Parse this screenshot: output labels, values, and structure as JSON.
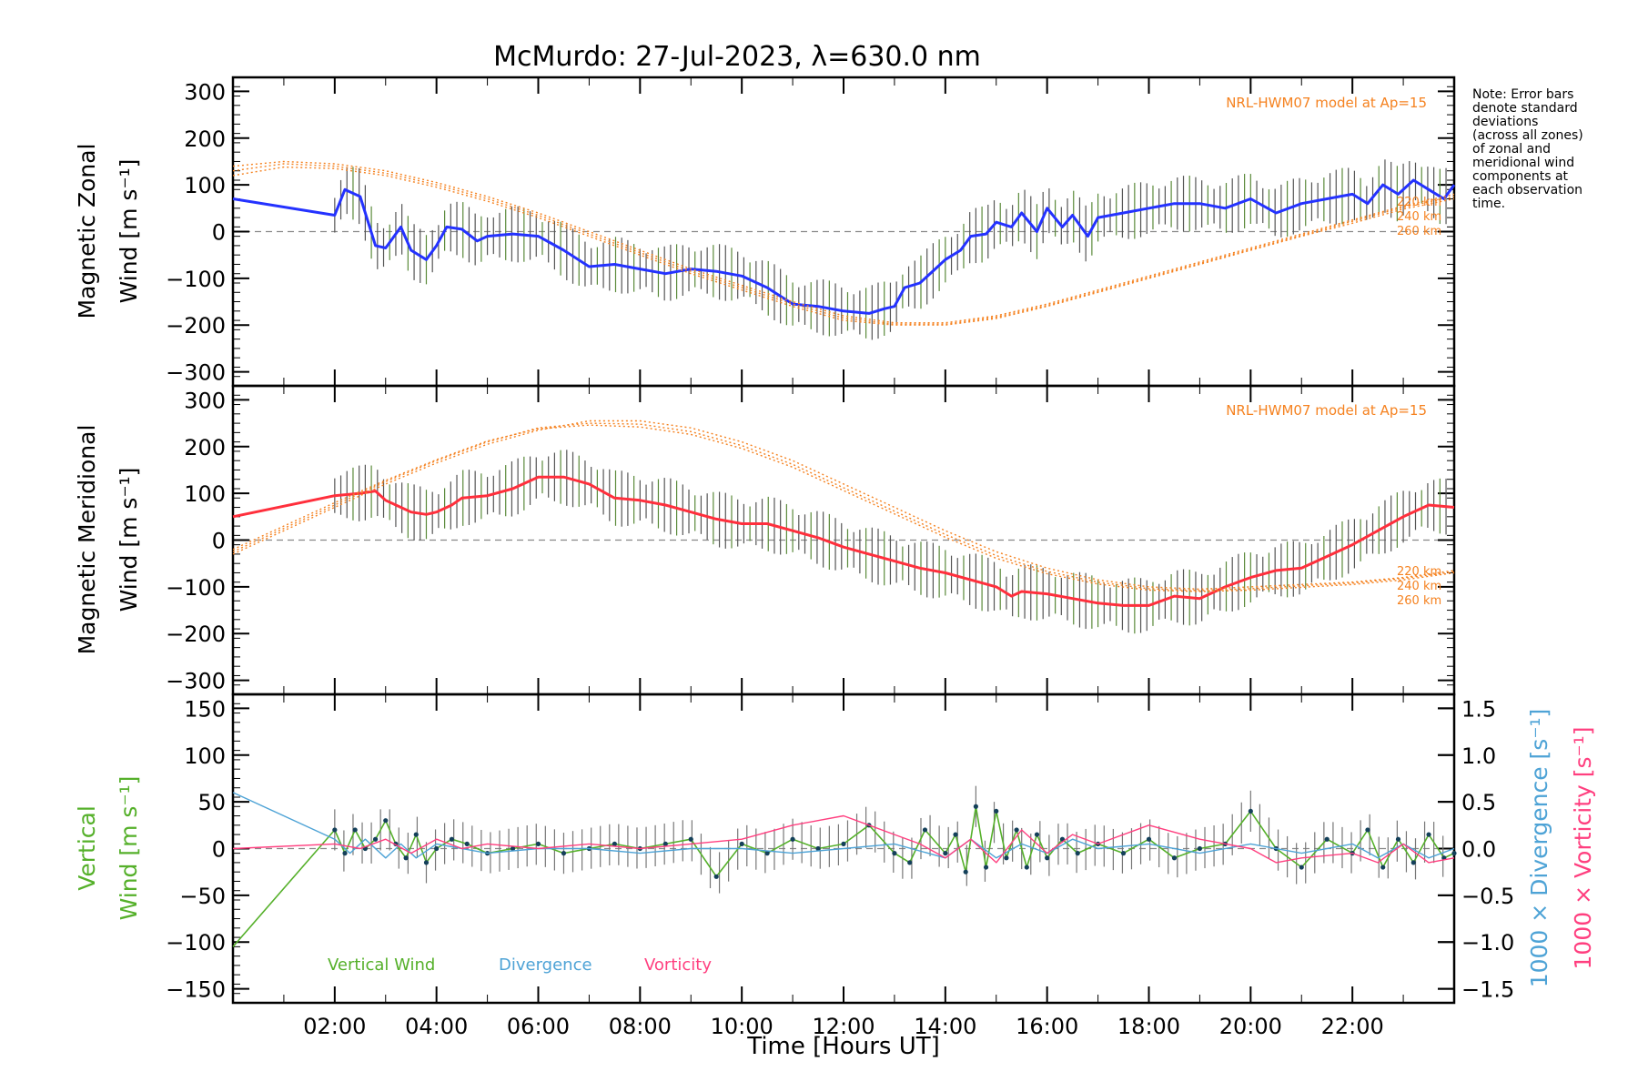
{
  "title": "McMurdo: 27-Jul-2023, λ=630.0 nm",
  "xlabel": "Time [Hours UT]",
  "note_lines": [
    "Note: Error bars",
    "denote standard",
    "deviations",
    "(across all zones)",
    "of zonal and",
    "meridional wind",
    "components at",
    "each observation",
    "time."
  ],
  "model_label": "NRL-HWM07 model at Ap=15",
  "alt_labels": [
    "220 km",
    "240 km",
    "260 km"
  ],
  "colors": {
    "zonal": "#2432ff",
    "meridional": "#ff2f3c",
    "model": "#f58220",
    "vertical": "#55b02a",
    "divergence": "#4ea3d6",
    "vorticity": "#ff3f7f",
    "err": "#666666"
  },
  "chart_data": [
    {
      "type": "line",
      "panel": "zonal",
      "ylabel_line1": "Magnetic Zonal",
      "ylabel_line2": "Wind [m s⁻¹]",
      "xlim": [
        0,
        24
      ],
      "ylim": [
        -330,
        330
      ],
      "yticks": [
        -300,
        -200,
        -100,
        0,
        100,
        200,
        300
      ],
      "x_tick_labels": [
        "02:00",
        "04:00",
        "06:00",
        "08:00",
        "10:00",
        "12:00",
        "14:00",
        "16:00",
        "18:00",
        "20:00",
        "22:00"
      ],
      "series": [
        {
          "name": "Magnetic Zonal Wind",
          "x": [
            0,
            2.0,
            2.2,
            2.5,
            2.8,
            3.0,
            3.3,
            3.5,
            3.8,
            4.0,
            4.2,
            4.5,
            4.8,
            5.0,
            5.5,
            6.0,
            6.5,
            7.0,
            7.5,
            8.0,
            8.5,
            9.0,
            9.5,
            10.0,
            10.5,
            11.0,
            11.5,
            12.0,
            12.5,
            12.8,
            13.0,
            13.2,
            13.5,
            13.8,
            14.0,
            14.3,
            14.5,
            14.8,
            15.0,
            15.3,
            15.5,
            15.8,
            16.0,
            16.3,
            16.5,
            16.8,
            17.0,
            17.5,
            18.0,
            18.5,
            19.0,
            19.5,
            20.0,
            20.5,
            21.0,
            21.5,
            22.0,
            22.3,
            22.6,
            22.9,
            23.2,
            23.5,
            23.8,
            24.0
          ],
          "values": [
            70,
            35,
            90,
            75,
            -30,
            -35,
            10,
            -40,
            -60,
            -30,
            10,
            5,
            -20,
            -10,
            -5,
            -10,
            -40,
            -75,
            -70,
            -80,
            -90,
            -80,
            -85,
            -95,
            -120,
            -155,
            -160,
            -170,
            -175,
            -165,
            -160,
            -120,
            -110,
            -80,
            -60,
            -40,
            -10,
            -5,
            20,
            10,
            40,
            0,
            50,
            10,
            35,
            -10,
            30,
            40,
            50,
            60,
            60,
            50,
            70,
            40,
            60,
            70,
            80,
            60,
            100,
            80,
            110,
            90,
            70,
            100
          ]
        },
        {
          "name": "NRL-HWM07 220 km",
          "x": [
            0,
            1,
            2,
            3,
            4,
            5,
            6,
            7,
            8,
            9,
            10,
            11,
            12,
            13,
            14,
            15,
            16,
            17,
            18,
            19,
            20,
            21,
            22,
            23,
            24
          ],
          "values": [
            140,
            150,
            145,
            130,
            105,
            75,
            40,
            0,
            -40,
            -80,
            -115,
            -150,
            -180,
            -195,
            -195,
            -180,
            -155,
            -125,
            -95,
            -65,
            -35,
            -5,
            25,
            55,
            80
          ]
        },
        {
          "name": "NRL-HWM07 240 km",
          "x": [
            0,
            1,
            2,
            3,
            4,
            5,
            6,
            7,
            8,
            9,
            10,
            11,
            12,
            13,
            14,
            15,
            16,
            17,
            18,
            19,
            20,
            21,
            22,
            23,
            24
          ],
          "values": [
            130,
            145,
            140,
            125,
            100,
            70,
            35,
            -5,
            -45,
            -85,
            -120,
            -155,
            -185,
            -198,
            -198,
            -183,
            -158,
            -128,
            -98,
            -68,
            -38,
            -8,
            22,
            52,
            75
          ]
        },
        {
          "name": "NRL-HWM07 260 km",
          "x": [
            0,
            1,
            2,
            3,
            4,
            5,
            6,
            7,
            8,
            9,
            10,
            11,
            12,
            13,
            14,
            15,
            16,
            17,
            18,
            19,
            20,
            21,
            22,
            23,
            24
          ],
          "values": [
            120,
            138,
            135,
            120,
            95,
            65,
            30,
            -10,
            -50,
            -90,
            -125,
            -160,
            -190,
            -200,
            -200,
            -186,
            -160,
            -130,
            -100,
            -70,
            -40,
            -10,
            18,
            48,
            70
          ]
        }
      ]
    },
    {
      "type": "line",
      "panel": "meridional",
      "ylabel_line1": "Magnetic Meridional",
      "ylabel_line2": "Wind [m s⁻¹]",
      "xlim": [
        0,
        24
      ],
      "ylim": [
        -330,
        330
      ],
      "yticks": [
        -300,
        -200,
        -100,
        0,
        100,
        200,
        300
      ],
      "series": [
        {
          "name": "Magnetic Meridional Wind",
          "x": [
            0,
            2.0,
            2.5,
            2.8,
            3.0,
            3.3,
            3.5,
            3.8,
            4.0,
            4.3,
            4.5,
            5.0,
            5.5,
            6.0,
            6.5,
            7.0,
            7.5,
            8.0,
            8.5,
            9.0,
            9.5,
            10.0,
            10.5,
            11.0,
            11.5,
            12.0,
            12.5,
            13.0,
            13.5,
            14.0,
            14.5,
            15.0,
            15.3,
            15.5,
            16.0,
            16.5,
            17.0,
            17.5,
            18.0,
            18.5,
            19.0,
            19.5,
            20.0,
            20.5,
            21.0,
            21.5,
            22.0,
            22.5,
            23.0,
            23.5,
            24.0
          ],
          "values": [
            50,
            95,
            100,
            105,
            85,
            70,
            60,
            55,
            60,
            75,
            90,
            95,
            110,
            135,
            135,
            120,
            90,
            85,
            75,
            60,
            45,
            35,
            35,
            20,
            5,
            -15,
            -30,
            -45,
            -60,
            -70,
            -85,
            -100,
            -120,
            -110,
            -115,
            -125,
            -135,
            -140,
            -140,
            -120,
            -125,
            -100,
            -80,
            -65,
            -60,
            -35,
            -10,
            20,
            50,
            75,
            70
          ]
        },
        {
          "name": "NRL-HWM07 220 km",
          "x": [
            0,
            1,
            2,
            3,
            4,
            5,
            6,
            7,
            8,
            9,
            10,
            11,
            12,
            13,
            14,
            15,
            16,
            17,
            18,
            19,
            20,
            21,
            22,
            23,
            24
          ],
          "values": [
            -30,
            20,
            70,
            120,
            165,
            205,
            235,
            255,
            255,
            240,
            210,
            170,
            120,
            70,
            20,
            -25,
            -60,
            -85,
            -100,
            -105,
            -100,
            -95,
            -90,
            -80,
            -65
          ]
        },
        {
          "name": "NRL-HWM07 240 km",
          "x": [
            0,
            1,
            2,
            3,
            4,
            5,
            6,
            7,
            8,
            9,
            10,
            11,
            12,
            13,
            14,
            15,
            16,
            17,
            18,
            19,
            20,
            21,
            22,
            23,
            24
          ],
          "values": [
            -25,
            25,
            75,
            125,
            170,
            210,
            240,
            250,
            248,
            232,
            202,
            162,
            112,
            62,
            12,
            -33,
            -67,
            -90,
            -104,
            -108,
            -104,
            -98,
            -92,
            -82,
            -68
          ]
        },
        {
          "name": "NRL-HWM07 260 km",
          "x": [
            0,
            1,
            2,
            3,
            4,
            5,
            6,
            7,
            8,
            9,
            10,
            11,
            12,
            13,
            14,
            15,
            16,
            17,
            18,
            19,
            20,
            21,
            22,
            23,
            24
          ],
          "values": [
            -20,
            30,
            80,
            128,
            172,
            212,
            238,
            246,
            242,
            226,
            196,
            156,
            106,
            56,
            6,
            -39,
            -72,
            -94,
            -107,
            -110,
            -107,
            -101,
            -95,
            -85,
            -70
          ]
        }
      ]
    },
    {
      "type": "line",
      "panel": "vertical",
      "ylabel_line1": "Vertical",
      "ylabel_line2": "Wind [m s⁻¹]",
      "y2label_div": "1000 × Divergence [s⁻¹]",
      "y2label_vort": "1000 × Vorticity [s⁻¹]",
      "xlim": [
        0,
        24
      ],
      "ylim": [
        -165,
        165
      ],
      "yticks": [
        -150,
        -100,
        -50,
        0,
        50,
        100,
        150
      ],
      "y2lim": [
        -1.65,
        1.65
      ],
      "y2ticks": [
        -1.5,
        -1.0,
        -0.5,
        0.0,
        0.5,
        1.0,
        1.5
      ],
      "legend": [
        "Vertical Wind",
        "Divergence",
        "Vorticity"
      ],
      "series": [
        {
          "name": "Vertical Wind",
          "axis": "left",
          "x": [
            0,
            2.0,
            2.2,
            2.4,
            2.6,
            2.8,
            3.0,
            3.2,
            3.4,
            3.6,
            3.8,
            4.0,
            4.3,
            4.6,
            5.0,
            5.5,
            6.0,
            6.5,
            7.0,
            7.5,
            8.0,
            8.5,
            9.0,
            9.5,
            10.0,
            10.5,
            11.0,
            11.5,
            12.0,
            12.5,
            13.0,
            13.3,
            13.6,
            14.0,
            14.2,
            14.4,
            14.6,
            14.8,
            15.0,
            15.2,
            15.4,
            15.6,
            15.8,
            16.0,
            16.3,
            16.6,
            17.0,
            17.5,
            18.0,
            18.5,
            19.0,
            19.5,
            20.0,
            20.5,
            21.0,
            21.5,
            22.0,
            22.3,
            22.6,
            22.9,
            23.2,
            23.5,
            23.8,
            24.0
          ],
          "values": [
            -105,
            20,
            -5,
            20,
            0,
            10,
            30,
            5,
            -10,
            15,
            -15,
            0,
            10,
            5,
            -5,
            0,
            5,
            -5,
            0,
            5,
            0,
            5,
            10,
            -30,
            5,
            -5,
            10,
            0,
            5,
            25,
            -5,
            -15,
            20,
            -5,
            15,
            -25,
            45,
            -20,
            40,
            -10,
            20,
            -20,
            15,
            -10,
            10,
            -5,
            5,
            -5,
            10,
            -10,
            0,
            5,
            40,
            0,
            -20,
            10,
            -5,
            20,
            -20,
            10,
            -15,
            15,
            -10,
            -5
          ]
        },
        {
          "name": "Divergence",
          "axis": "right",
          "x": [
            0,
            2.0,
            2.3,
            2.6,
            3.0,
            3.3,
            3.6,
            4.0,
            4.5,
            5.0,
            6.0,
            7.0,
            8.0,
            9.0,
            10.0,
            11.0,
            12.0,
            13.0,
            14.0,
            14.5,
            15.0,
            15.5,
            16.0,
            16.5,
            17.0,
            18.0,
            19.0,
            20.0,
            21.0,
            22.0,
            22.5,
            23.0,
            23.5,
            24.0
          ],
          "values": [
            0.6,
            0.1,
            -0.05,
            0.1,
            -0.1,
            0.05,
            -0.1,
            0.05,
            0.0,
            -0.05,
            0.0,
            0.0,
            -0.05,
            0.0,
            0.0,
            -0.05,
            0.0,
            0.05,
            -0.1,
            0.1,
            -0.1,
            0.05,
            -0.05,
            0.1,
            0.0,
            0.05,
            -0.05,
            0.05,
            -0.05,
            0.05,
            -0.1,
            0.05,
            -0.1,
            0.0
          ]
        },
        {
          "name": "Vorticity",
          "axis": "right",
          "x": [
            0,
            2.0,
            2.5,
            3.0,
            3.5,
            4.0,
            4.5,
            5.0,
            6.0,
            7.0,
            8.0,
            9.0,
            10.0,
            11.0,
            11.5,
            12.0,
            12.5,
            13.0,
            13.5,
            14.0,
            14.5,
            15.0,
            15.5,
            16.0,
            16.5,
            17.0,
            18.0,
            19.0,
            20.0,
            20.5,
            21.0,
            22.0,
            22.5,
            23.0,
            23.5,
            24.0
          ],
          "values": [
            0.0,
            0.05,
            0.0,
            0.1,
            -0.05,
            0.1,
            0.0,
            0.05,
            0.0,
            0.05,
            0.0,
            0.05,
            0.1,
            0.25,
            0.3,
            0.35,
            0.25,
            0.15,
            0.05,
            -0.1,
            0.1,
            -0.15,
            0.2,
            -0.05,
            0.15,
            0.05,
            0.25,
            0.1,
            0.0,
            -0.15,
            -0.1,
            -0.05,
            -0.15,
            0.05,
            -0.15,
            -0.1
          ]
        }
      ]
    }
  ]
}
